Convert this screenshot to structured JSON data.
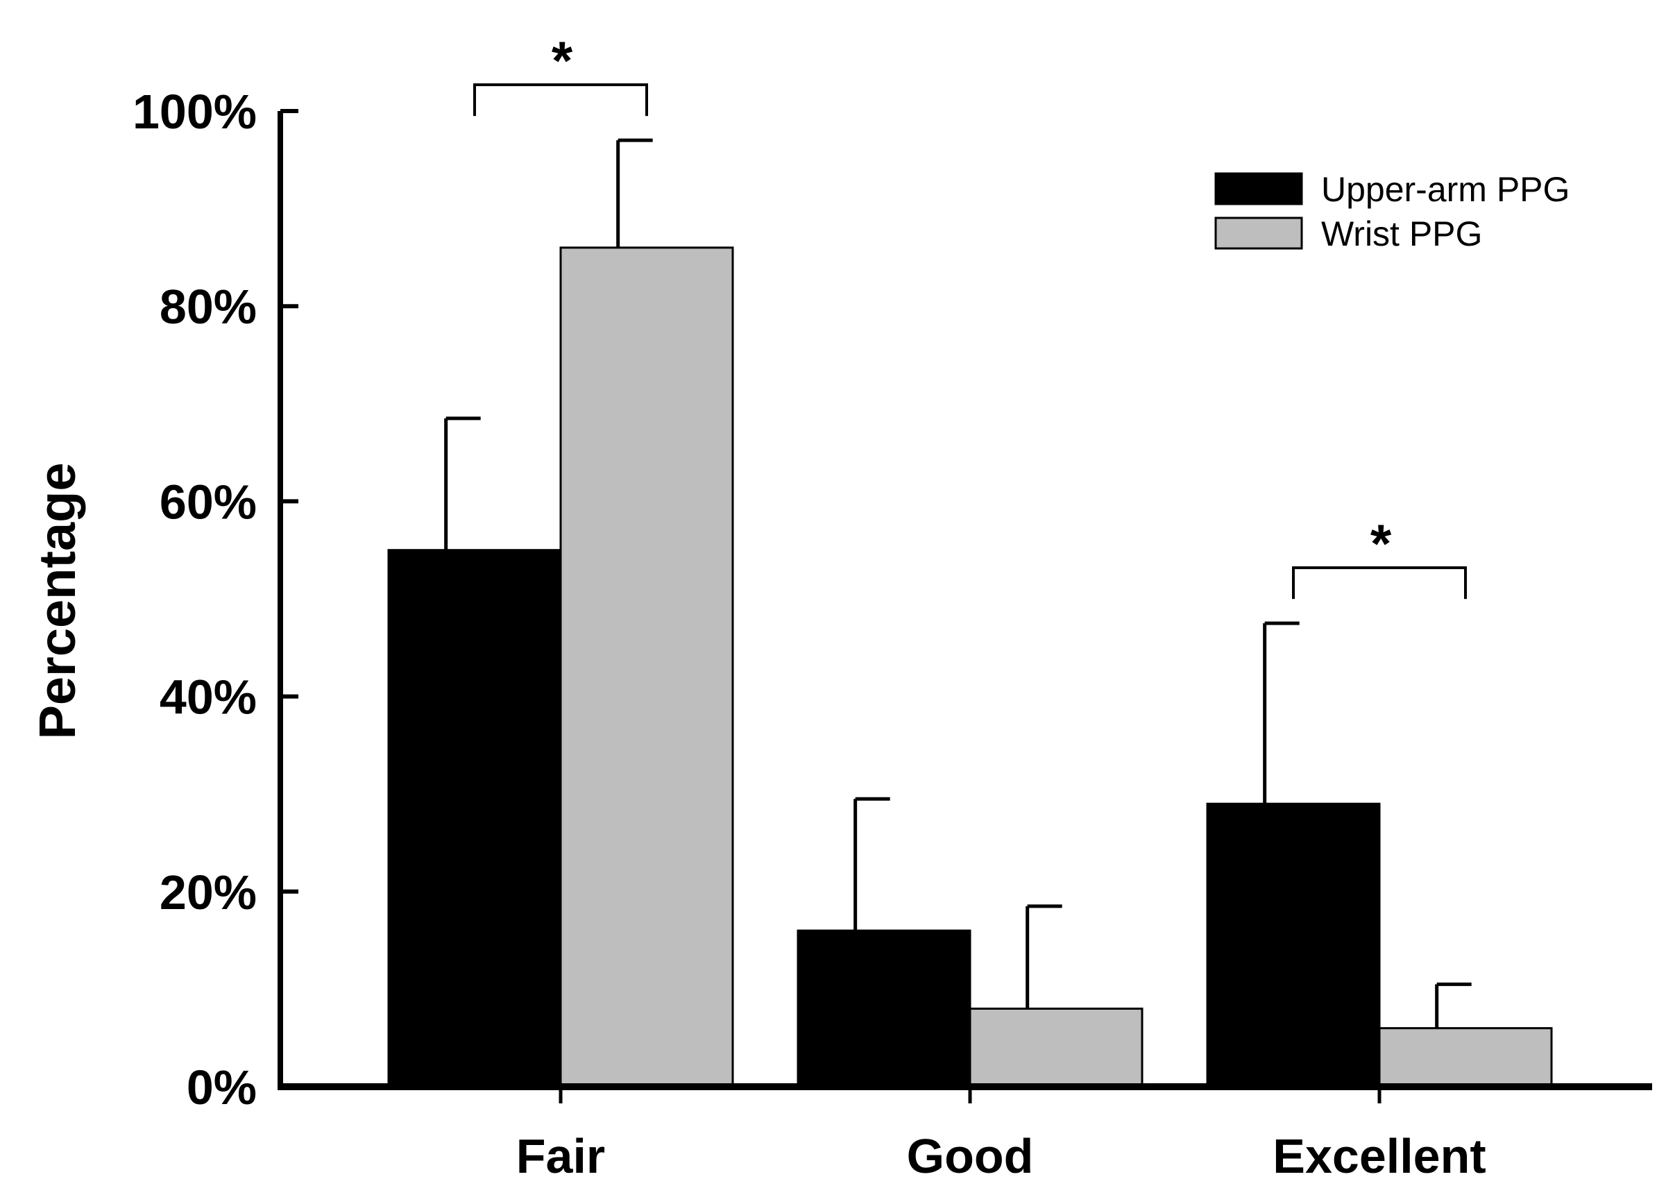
{
  "chart_data": {
    "type": "bar",
    "title": "",
    "xlabel": "",
    "ylabel": "Percentage",
    "ylim": [
      0,
      100
    ],
    "yticks": [
      0,
      20,
      40,
      60,
      80,
      100
    ],
    "ytick_labels": [
      "0%",
      "20%",
      "40%",
      "60%",
      "80%",
      "100%"
    ],
    "grid": false,
    "legend_position": "top-right",
    "categories": [
      "Fair",
      "Good",
      "Excellent"
    ],
    "series": [
      {
        "name": "Upper-arm PPG",
        "color": "#000000",
        "values": [
          55,
          16,
          29
        ],
        "errors": [
          13.5,
          13.5,
          18.5
        ]
      },
      {
        "name": "Wrist PPG",
        "color": "#bebebe",
        "values": [
          86,
          8,
          6
        ],
        "errors": [
          11,
          10.5,
          4.5
        ]
      }
    ],
    "annotations": [
      {
        "category": "Fair",
        "text": "*"
      },
      {
        "category": "Excellent",
        "text": "*"
      }
    ]
  }
}
